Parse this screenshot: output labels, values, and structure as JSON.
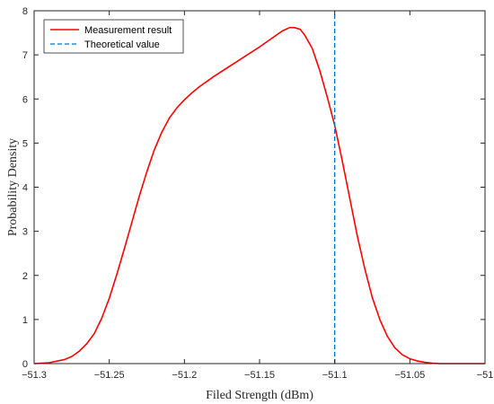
{
  "chart_data": {
    "type": "line",
    "title": "",
    "xlabel": "Filed Strength (dBm)",
    "ylabel": "Probability Density",
    "xlim": [
      -51.3,
      -51.0
    ],
    "ylim": [
      0,
      8
    ],
    "x_ticks": [
      -51.3,
      -51.25,
      -51.2,
      -51.15,
      -51.1,
      -51.05,
      -51.0
    ],
    "x_tick_labels": [
      "-51.3",
      "-51.25",
      "-51.2",
      "-51.15",
      "-51.1",
      "-51.05",
      "-51"
    ],
    "y_ticks": [
      0,
      1,
      2,
      3,
      4,
      5,
      6,
      7,
      8
    ],
    "y_tick_labels": [
      "0",
      "1",
      "2",
      "3",
      "4",
      "5",
      "6",
      "7",
      "8"
    ],
    "grid": false,
    "legend_position": "top-left",
    "series": [
      {
        "name": "Measurement result",
        "color": "#ff0000",
        "style": "solid",
        "x": [
          -51.3,
          -51.29,
          -51.28,
          -51.275,
          -51.27,
          -51.265,
          -51.26,
          -51.255,
          -51.25,
          -51.245,
          -51.24,
          -51.235,
          -51.23,
          -51.225,
          -51.22,
          -51.215,
          -51.21,
          -51.205,
          -51.2,
          -51.195,
          -51.19,
          -51.18,
          -51.17,
          -51.16,
          -51.15,
          -51.145,
          -51.14,
          -51.135,
          -51.13,
          -51.127,
          -51.123,
          -51.12,
          -51.115,
          -51.11,
          -51.105,
          -51.1,
          -51.095,
          -51.09,
          -51.085,
          -51.08,
          -51.075,
          -51.07,
          -51.065,
          -51.06,
          -51.055,
          -51.05,
          -51.045,
          -51.04,
          -51.035,
          -51.03,
          -51.02,
          -51.01,
          -51.0
        ],
        "y": [
          0.0,
          0.02,
          0.09,
          0.16,
          0.28,
          0.45,
          0.68,
          1.03,
          1.48,
          2.02,
          2.6,
          3.2,
          3.8,
          4.35,
          4.85,
          5.25,
          5.57,
          5.8,
          5.98,
          6.14,
          6.28,
          6.52,
          6.74,
          6.96,
          7.18,
          7.3,
          7.42,
          7.54,
          7.62,
          7.62,
          7.58,
          7.45,
          7.15,
          6.65,
          6.05,
          5.4,
          4.6,
          3.75,
          2.9,
          2.15,
          1.5,
          1.0,
          0.62,
          0.36,
          0.2,
          0.11,
          0.06,
          0.03,
          0.01,
          0.0,
          0.0,
          0.0,
          0.0
        ]
      },
      {
        "name": "Theoretical value",
        "color": "#0072bd",
        "style": "dashed",
        "x": [
          -51.1,
          -51.1
        ],
        "y": [
          0,
          8
        ]
      }
    ]
  }
}
